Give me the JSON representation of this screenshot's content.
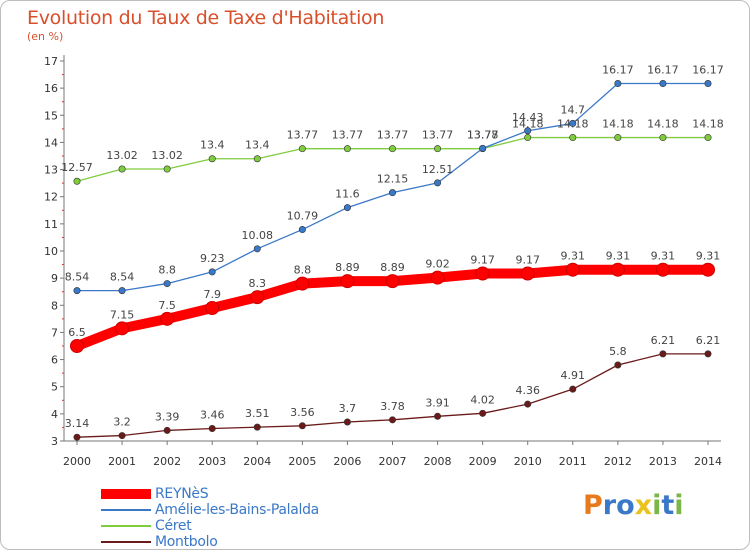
{
  "title": "Evolution du Taux de Taxe d'Habitation",
  "unit": "(en %)",
  "logo": {
    "letters": [
      "P",
      "r",
      "o",
      "x",
      "i",
      "t",
      "i"
    ],
    "colors": [
      "#e87a1e",
      "#3a78c8",
      "#3a78c8",
      "#e8c21e",
      "#7ab648",
      "#3a78c8",
      "#7ab648"
    ]
  },
  "chart_data": {
    "type": "line",
    "x": [
      2000,
      2001,
      2002,
      2003,
      2004,
      2005,
      2006,
      2007,
      2008,
      2009,
      2010,
      2011,
      2012,
      2013,
      2014
    ],
    "ylim": [
      3,
      17
    ],
    "yticks": [
      3,
      4,
      5,
      6,
      7,
      8,
      9,
      10,
      11,
      12,
      13,
      14,
      15,
      16,
      17
    ],
    "grid": false,
    "legend_position": "bottom-left",
    "series": [
      {
        "name": "REYNèS",
        "color": "#ff0000",
        "values": [
          6.5,
          7.15,
          7.5,
          7.9,
          8.3,
          8.8,
          8.89,
          8.89,
          9.02,
          9.17,
          9.17,
          9.31,
          9.31,
          9.31,
          9.31
        ],
        "labels": [
          "6.5",
          "7.15",
          "7.5",
          "7.9",
          "8.3",
          "8.8",
          "8.89",
          "8.89",
          "9.02",
          "9.17",
          "9.17",
          "9.31",
          "9.31",
          "9.31",
          "9.31"
        ]
      },
      {
        "name": "Amélie-les-Bains-Palalda",
        "color": "#3a78c8",
        "values": [
          8.54,
          8.54,
          8.8,
          9.23,
          10.08,
          10.79,
          11.6,
          12.15,
          12.51,
          13.78,
          14.43,
          14.7,
          16.17,
          16.17,
          16.17
        ],
        "labels": [
          "8.54",
          "8.54",
          "8.8",
          "9.23",
          "10.08",
          "10.79",
          "11.6",
          "12.15",
          "12.51",
          "13.78",
          "14.43",
          "14.7",
          "16.17",
          "16.17",
          "16.17"
        ]
      },
      {
        "name": "Céret",
        "color": "#7fcc3f",
        "values": [
          12.57,
          13.02,
          13.02,
          13.4,
          13.4,
          13.77,
          13.77,
          13.77,
          13.77,
          13.77,
          14.18,
          14.18,
          14.18,
          14.18,
          14.18
        ],
        "labels": [
          "12.57",
          "13.02",
          "13.02",
          "13.4",
          "13.4",
          "13.77",
          "13.77",
          "13.77",
          "13.77",
          "13.77",
          "14.18",
          "14.18",
          "14.18",
          "14.18",
          "14.18"
        ]
      },
      {
        "name": "Montbolo",
        "color": "#6b1a1a",
        "values": [
          3.14,
          3.2,
          3.39,
          3.46,
          3.51,
          3.56,
          3.7,
          3.78,
          3.91,
          4.02,
          4.36,
          4.91,
          5.8,
          6.21,
          6.21
        ],
        "labels": [
          "3.14",
          "3.2",
          "3.39",
          "3.46",
          "3.51",
          "3.56",
          "3.7",
          "3.78",
          "3.91",
          "4.02",
          "4.36",
          "4.91",
          "5.8",
          "6.21",
          "6.21"
        ]
      }
    ]
  }
}
